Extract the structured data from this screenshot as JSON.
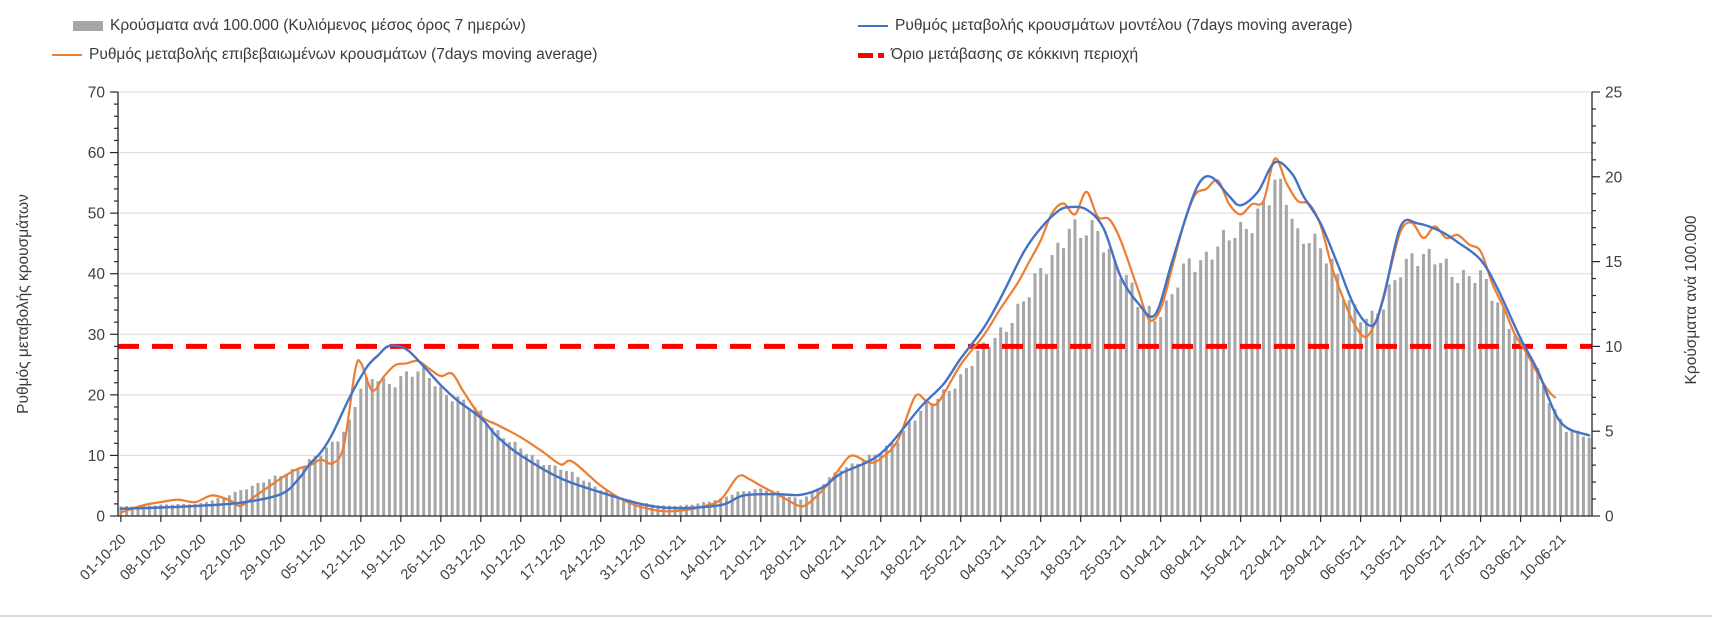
{
  "chart_data": {
    "type": "combo-bar-line",
    "title": "",
    "grid": "horizontal, every 10 left-axis units",
    "legend_position": "top, two columns",
    "left_axis": {
      "title": "Ρυθμός μεταβολής κρουσμάτων",
      "min": 0,
      "max": 70,
      "major_tick": 10,
      "minor_tick": 2,
      "tick_labels": [
        "0",
        "10",
        "20",
        "30",
        "40",
        "50",
        "60",
        "70"
      ]
    },
    "right_axis": {
      "title": "Κρούσματα ανά 100.000",
      "min": 0,
      "max": 25,
      "major_tick": 5,
      "minor_tick": 1,
      "tick_labels": [
        "0",
        "5",
        "10",
        "15",
        "20",
        "25"
      ]
    },
    "x_axis": {
      "unit": "days, daily bars from 01-10-20; labeled weekly",
      "tick_labels": [
        "01-10-20",
        "08-10-20",
        "15-10-20",
        "22-10-20",
        "29-10-20",
        "05-11-20",
        "12-11-20",
        "19-11-20",
        "26-11-20",
        "03-12-20",
        "10-12-20",
        "17-12-20",
        "24-12-20",
        "31-12-20",
        "07-01-21",
        "14-01-21",
        "21-01-21",
        "28-01-21",
        "04-02-21",
        "11-02-21",
        "18-02-21",
        "25-02-21",
        "04-03-21",
        "11-03-21",
        "18-03-21",
        "25-03-21",
        "01-04-21",
        "08-04-21",
        "15-04-21",
        "22-04-21",
        "29-04-21",
        "06-05-21",
        "13-05-21",
        "20-05-21",
        "27-05-21",
        "03-06-21",
        "10-06-21"
      ]
    },
    "threshold": {
      "label": "Όριο μετάβασης σε κόκκινη περιοχή",
      "value_left_axis": 28,
      "value_right_axis": 10,
      "color": "#ff0000"
    },
    "series": {
      "bars": {
        "name": "Κρούσματα ανά 100.000 (Κυλιόμενος μέσος όρος 7 ημερών)",
        "axis": "right",
        "color": "#a6a6a6",
        "knots": [
          [
            0,
            0.55
          ],
          [
            7,
            0.65
          ],
          [
            14,
            0.75
          ],
          [
            18,
            1.1
          ],
          [
            21,
            1.55
          ],
          [
            25,
            2.0
          ],
          [
            28,
            2.4
          ],
          [
            31,
            2.9
          ],
          [
            35,
            3.6
          ],
          [
            38,
            4.6
          ],
          [
            40,
            5.6
          ],
          [
            42,
            7.6
          ],
          [
            45,
            8.1
          ],
          [
            47,
            7.8
          ],
          [
            49,
            8.3
          ],
          [
            52,
            8.4
          ],
          [
            54,
            8.2
          ],
          [
            56,
            7.5
          ],
          [
            59,
            6.9
          ],
          [
            63,
            6.0
          ],
          [
            66,
            5.0
          ],
          [
            70,
            3.9
          ],
          [
            73,
            3.3
          ],
          [
            77,
            2.8
          ],
          [
            80,
            2.3
          ],
          [
            84,
            1.6
          ],
          [
            88,
            1.0
          ],
          [
            91,
            0.8
          ],
          [
            95,
            0.6
          ],
          [
            98,
            0.6
          ],
          [
            101,
            0.75
          ],
          [
            105,
            1.0
          ],
          [
            108,
            1.4
          ],
          [
            110,
            1.55
          ],
          [
            112,
            1.6
          ],
          [
            115,
            1.4
          ],
          [
            117,
            1.15
          ],
          [
            119,
            1.0
          ],
          [
            122,
            1.6
          ],
          [
            124,
            2.2
          ],
          [
            126,
            2.8
          ],
          [
            129,
            3.2
          ],
          [
            133,
            3.7
          ],
          [
            136,
            4.6
          ],
          [
            138,
            5.5
          ],
          [
            140,
            6.1
          ],
          [
            143,
            7.0
          ],
          [
            147,
            8.2
          ],
          [
            150,
            9.4
          ],
          [
            152,
            10.3
          ],
          [
            154,
            11.0
          ],
          [
            157,
            12.0
          ],
          [
            159,
            13.0
          ],
          [
            161,
            14.5
          ],
          [
            164,
            16.0
          ],
          [
            166,
            16.8
          ],
          [
            168,
            16.4
          ],
          [
            171,
            17.2
          ],
          [
            173,
            15.6
          ],
          [
            175,
            14.3
          ],
          [
            178,
            12.6
          ],
          [
            181,
            12.0
          ],
          [
            183,
            12.3
          ],
          [
            185,
            13.6
          ],
          [
            187,
            14.9
          ],
          [
            189,
            15.2
          ],
          [
            191,
            15.8
          ],
          [
            194,
            16.2
          ],
          [
            196,
            16.7
          ],
          [
            198,
            17.6
          ],
          [
            200,
            18.5
          ],
          [
            202,
            19.3
          ],
          [
            204,
            18.6
          ],
          [
            206,
            16.6
          ],
          [
            208,
            16.8
          ],
          [
            210,
            15.7
          ],
          [
            212,
            14.5
          ],
          [
            214,
            13.2
          ],
          [
            217,
            12.0
          ],
          [
            219,
            11.6
          ],
          [
            221,
            12.2
          ],
          [
            224,
            14.8
          ],
          [
            226,
            15.5
          ],
          [
            229,
            15.0
          ],
          [
            231,
            14.9
          ],
          [
            234,
            14.4
          ],
          [
            238,
            13.9
          ],
          [
            241,
            12.6
          ],
          [
            243,
            11.6
          ],
          [
            245,
            10.2
          ],
          [
            247,
            9.0
          ],
          [
            249,
            7.6
          ],
          [
            251,
            6.3
          ],
          [
            253,
            5.2
          ],
          [
            255,
            4.8
          ],
          [
            257,
            4.6
          ]
        ]
      },
      "model": {
        "name": "Ρυθμός μεταβολής κρουσμάτων μοντέλου (7days moving average)",
        "axis": "left",
        "color": "#4472c4",
        "knots": [
          [
            0,
            1.2
          ],
          [
            7,
            1.4
          ],
          [
            14,
            1.7
          ],
          [
            21,
            2.2
          ],
          [
            28,
            3.6
          ],
          [
            31,
            6.0
          ],
          [
            33,
            8.5
          ],
          [
            35,
            10.5
          ],
          [
            37,
            13.5
          ],
          [
            40,
            19.5
          ],
          [
            43,
            24.5
          ],
          [
            45,
            26.5
          ],
          [
            47,
            28.1
          ],
          [
            50,
            27.5
          ],
          [
            53,
            24.7
          ],
          [
            56,
            21.6
          ],
          [
            59,
            19.0
          ],
          [
            63,
            16.2
          ],
          [
            66,
            13.0
          ],
          [
            70,
            10.0
          ],
          [
            77,
            6.2
          ],
          [
            84,
            3.9
          ],
          [
            91,
            2.0
          ],
          [
            97,
            1.3
          ],
          [
            105,
            1.8
          ],
          [
            109,
            3.4
          ],
          [
            115,
            3.6
          ],
          [
            119,
            3.5
          ],
          [
            123,
            4.8
          ],
          [
            126,
            7.0
          ],
          [
            133,
            10.3
          ],
          [
            140,
            18.0
          ],
          [
            144,
            21.8
          ],
          [
            147,
            26.0
          ],
          [
            151,
            31.0
          ],
          [
            154,
            36.0
          ],
          [
            158,
            43.5
          ],
          [
            161,
            47.5
          ],
          [
            164,
            50.3
          ],
          [
            166,
            51.0
          ],
          [
            169,
            50.6
          ],
          [
            172,
            47.5
          ],
          [
            175,
            39.5
          ],
          [
            178,
            35.2
          ],
          [
            181,
            33.2
          ],
          [
            184,
            42.0
          ],
          [
            187,
            51.0
          ],
          [
            189,
            55.3
          ],
          [
            191,
            55.9
          ],
          [
            194,
            52.8
          ],
          [
            196,
            51.3
          ],
          [
            199,
            53.5
          ],
          [
            202,
            58.4
          ],
          [
            205,
            56.5
          ],
          [
            207,
            52.8
          ],
          [
            210,
            48.3
          ],
          [
            213,
            41.5
          ],
          [
            216,
            34.5
          ],
          [
            219,
            31.4
          ],
          [
            221,
            36.0
          ],
          [
            224,
            47.8
          ],
          [
            227,
            48.3
          ],
          [
            231,
            47.0
          ],
          [
            234,
            45.2
          ],
          [
            238,
            42.3
          ],
          [
            241,
            37.5
          ],
          [
            245,
            29.3
          ],
          [
            248,
            24.0
          ],
          [
            252,
            15.5
          ],
          [
            257,
            13.3
          ]
        ]
      },
      "confirmed": {
        "name": "Ρυθμός μεταβολής επιβεβαιωμένων κρουσμάτων (7days moving average)",
        "axis": "left",
        "color": "#ed7d31",
        "knots": [
          [
            0,
            0.6
          ],
          [
            4,
            1.8
          ],
          [
            7,
            2.3
          ],
          [
            10,
            2.7
          ],
          [
            13,
            2.3
          ],
          [
            16,
            3.4
          ],
          [
            19,
            2.6
          ],
          [
            21,
            1.7
          ],
          [
            24,
            3.6
          ],
          [
            28,
            6.2
          ],
          [
            31,
            7.8
          ],
          [
            33,
            8.3
          ],
          [
            35,
            9.3
          ],
          [
            37,
            8.7
          ],
          [
            39,
            11.5
          ],
          [
            41,
            24.0
          ],
          [
            42,
            25.3
          ],
          [
            44,
            20.7
          ],
          [
            46,
            23.0
          ],
          [
            48,
            24.9
          ],
          [
            50,
            25.2
          ],
          [
            52,
            25.6
          ],
          [
            54,
            24.3
          ],
          [
            56,
            23.1
          ],
          [
            58,
            23.5
          ],
          [
            60,
            20.5
          ],
          [
            63,
            16.5
          ],
          [
            66,
            15.0
          ],
          [
            70,
            13.0
          ],
          [
            74,
            10.5
          ],
          [
            77,
            8.5
          ],
          [
            79,
            9.0
          ],
          [
            84,
            5.0
          ],
          [
            88,
            2.6
          ],
          [
            91,
            1.5
          ],
          [
            95,
            0.8
          ],
          [
            99,
            1.0
          ],
          [
            102,
            1.6
          ],
          [
            105,
            2.7
          ],
          [
            108,
            6.5
          ],
          [
            110,
            6.1
          ],
          [
            112,
            5.0
          ],
          [
            116,
            3.0
          ],
          [
            119,
            1.6
          ],
          [
            121,
            2.6
          ],
          [
            124,
            5.5
          ],
          [
            126,
            8.1
          ],
          [
            128,
            10.0
          ],
          [
            131,
            8.8
          ],
          [
            133,
            9.5
          ],
          [
            136,
            12.5
          ],
          [
            139,
            19.7
          ],
          [
            141,
            19.0
          ],
          [
            143,
            18.7
          ],
          [
            147,
            25.0
          ],
          [
            151,
            29.8
          ],
          [
            154,
            34.3
          ],
          [
            157,
            38.5
          ],
          [
            159,
            42.0
          ],
          [
            161,
            45.5
          ],
          [
            163,
            50.0
          ],
          [
            165,
            51.6
          ],
          [
            167,
            49.8
          ],
          [
            169,
            53.5
          ],
          [
            171,
            49.4
          ],
          [
            173,
            49.0
          ],
          [
            175,
            45.5
          ],
          [
            178,
            37.5
          ],
          [
            180,
            32.4
          ],
          [
            182,
            34.2
          ],
          [
            184,
            41.0
          ],
          [
            186,
            48.0
          ],
          [
            188,
            53.0
          ],
          [
            190,
            54.0
          ],
          [
            192,
            55.4
          ],
          [
            194,
            51.5
          ],
          [
            196,
            49.8
          ],
          [
            198,
            51.5
          ],
          [
            200,
            52.0
          ],
          [
            202,
            59.0
          ],
          [
            204,
            55.0
          ],
          [
            206,
            52.0
          ],
          [
            208,
            51.5
          ],
          [
            210,
            48.0
          ],
          [
            212,
            41.0
          ],
          [
            214,
            35.8
          ],
          [
            216,
            31.5
          ],
          [
            218,
            29.6
          ],
          [
            220,
            33.0
          ],
          [
            222,
            40.0
          ],
          [
            224,
            47.0
          ],
          [
            226,
            48.4
          ],
          [
            228,
            45.9
          ],
          [
            230,
            47.8
          ],
          [
            232,
            45.9
          ],
          [
            234,
            46.4
          ],
          [
            236,
            44.8
          ],
          [
            238,
            43.7
          ],
          [
            240,
            38.5
          ],
          [
            242,
            34.5
          ],
          [
            244,
            30.0
          ],
          [
            246,
            27.0
          ],
          [
            248,
            23.5
          ],
          [
            250,
            20.5
          ],
          [
            251,
            19.6
          ]
        ]
      }
    }
  }
}
